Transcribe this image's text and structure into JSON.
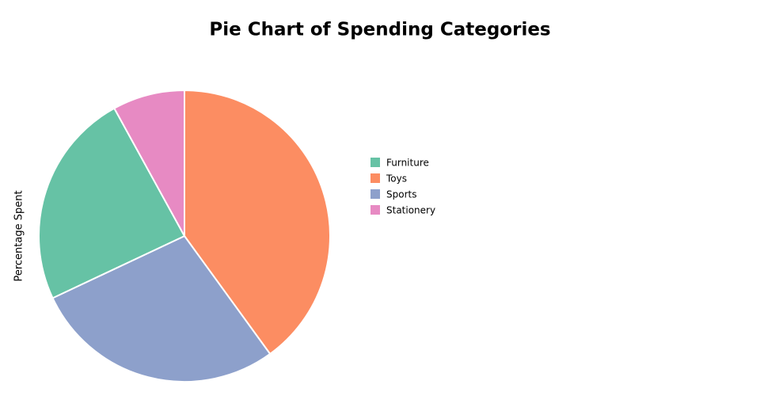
{
  "chart_data": {
    "type": "pie",
    "title": "Pie Chart of Spending Categories",
    "ylabel": "Percentage Spent",
    "categories": [
      "Furniture",
      "Toys",
      "Sports",
      "Stationery"
    ],
    "values": [
      24,
      40,
      28,
      8
    ],
    "colors": [
      "#66c2a5",
      "#fc8d62",
      "#8da0cb",
      "#e78ac3"
    ],
    "legend": "right"
  }
}
